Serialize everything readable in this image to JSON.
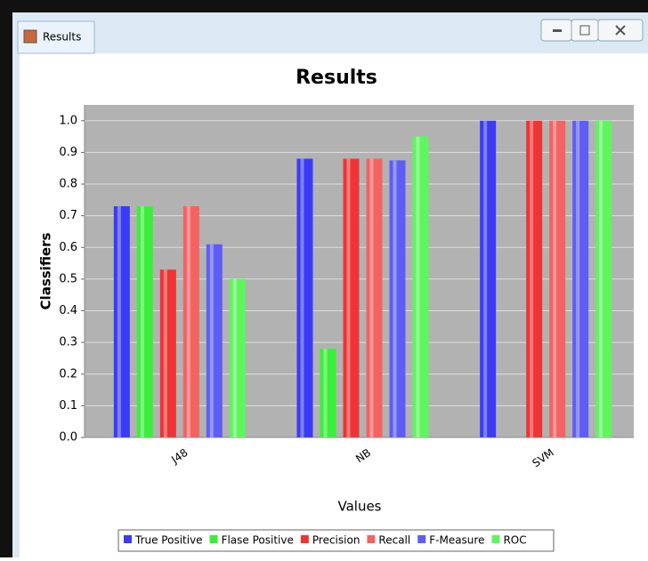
{
  "window": {
    "title": "Results"
  },
  "chart_data": {
    "type": "bar",
    "title": "Results",
    "x_label": "Values",
    "y_label": "Classifiers",
    "categories": [
      "J48",
      "NB",
      "SVM"
    ],
    "series": [
      {
        "name": "True Positive",
        "color": "#3b3bf5",
        "values": [
          0.73,
          0.88,
          1.0
        ]
      },
      {
        "name": "Flase Positive",
        "color": "#3bee3b",
        "values": [
          0.73,
          0.28,
          0
        ]
      },
      {
        "name": "Precision",
        "color": "#ee3434",
        "values": [
          0.53,
          0.88,
          1.0
        ]
      },
      {
        "name": "Recall",
        "color": "#f46262",
        "values": [
          0.73,
          0.88,
          1.0
        ]
      },
      {
        "name": "F-Measure",
        "color": "#5e5ef5",
        "values": [
          0.61,
          0.875,
          1.0
        ]
      },
      {
        "name": "ROC",
        "color": "#5ef55e",
        "values": [
          0.5,
          0.95,
          1.0
        ]
      }
    ],
    "ylim": [
      0,
      1.05
    ],
    "yticks": [
      {
        "value": 0,
        "label": "0.0"
      },
      {
        "value": 0.1,
        "label": "0.1"
      },
      {
        "value": 0.2,
        "label": "0.2"
      },
      {
        "value": 0.3,
        "label": "0.3"
      },
      {
        "value": 0.4,
        "label": "0.4"
      },
      {
        "value": 0.5,
        "label": "0.5"
      },
      {
        "value": 0.6,
        "label": "0.6"
      },
      {
        "value": 0.7,
        "label": "0.7"
      },
      {
        "value": 0.8,
        "label": "0.8"
      },
      {
        "value": 0.9,
        "label": "0.9"
      },
      {
        "value": 1,
        "label": "1.0"
      }
    ],
    "grid": true,
    "legend": "bottom"
  }
}
